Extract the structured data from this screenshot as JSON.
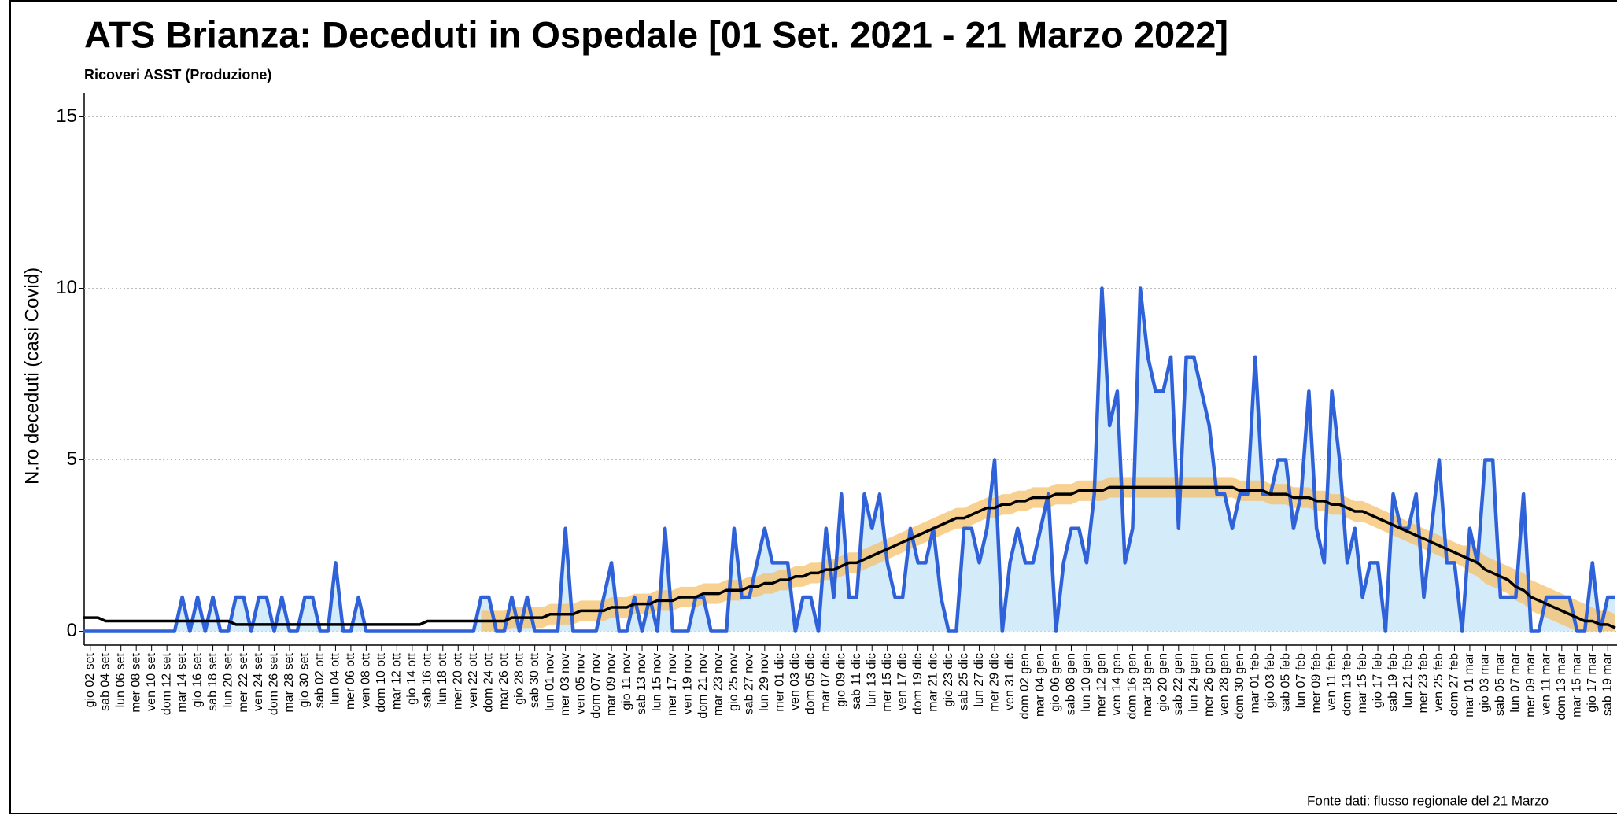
{
  "chart_data": {
    "type": "line",
    "title": "ATS Brianza: Deceduti in Ospedale [01 Set. 2021 - 21 Marzo 2022]",
    "subtitle": "Ricoveri ASST (Produzione)",
    "y_label": "N.ro deceduti (casi Covid)",
    "source": "Fonte dati: flusso regionale del 21 Marzo",
    "ylim": [
      -0.4,
      15.7
    ],
    "yticks": [
      0,
      5,
      10,
      15
    ],
    "grid": true,
    "categories": [
      null,
      "gio 02 set",
      null,
      "sab 04 set",
      null,
      "lun 06 set",
      null,
      "mer 08 set",
      null,
      "ven 10 set",
      null,
      "dom 12 set",
      null,
      "mar 14 set",
      null,
      "gio 16 set",
      null,
      "sab 18 set",
      null,
      "lun 20 set",
      null,
      "mer 22 set",
      null,
      "ven 24 set",
      null,
      "dom 26 set",
      null,
      "mar 28 set",
      null,
      "gio 30 set",
      null,
      "sab 02 ott",
      null,
      "lun 04 ott",
      null,
      "mer 06 ott",
      null,
      "ven 08 ott",
      null,
      "dom 10 ott",
      null,
      "mar 12 ott",
      null,
      "gio 14 ott",
      null,
      "sab 16 ott",
      null,
      "lun 18 ott",
      null,
      "mer 20 ott",
      null,
      "ven 22 ott",
      null,
      "dom 24 ott",
      null,
      "mar 26 ott",
      null,
      "gio 28 ott",
      null,
      "sab 30 ott",
      null,
      "lun 01 nov",
      null,
      "mer 03 nov",
      null,
      "ven 05 nov",
      null,
      "dom 07 nov",
      null,
      "mar 09 nov",
      null,
      "gio 11 nov",
      null,
      "sab 13 nov",
      null,
      "lun 15 nov",
      null,
      "mer 17 nov",
      null,
      "ven 19 nov",
      null,
      "dom 21 nov",
      null,
      "mar 23 nov",
      null,
      "gio 25 nov",
      null,
      "sab 27 nov",
      null,
      "lun 29 nov",
      null,
      "mer 01 dic",
      null,
      "ven 03 dic",
      null,
      "dom 05 dic",
      null,
      "mar 07 dic",
      null,
      "gio 09 dic",
      null,
      "sab 11 dic",
      null,
      "lun 13 dic",
      null,
      "mer 15 dic",
      null,
      "ven 17 dic",
      null,
      "dom 19 dic",
      null,
      "mar 21 dic",
      null,
      "gio 23 dic",
      null,
      "sab 25 dic",
      null,
      "lun 27 dic",
      null,
      "mer 29 dic",
      null,
      "ven 31 dic",
      null,
      "dom 02 gen",
      null,
      "mar 04 gen",
      null,
      "gio 06 gen",
      null,
      "sab 08 gen",
      null,
      "lun 10 gen",
      null,
      "mer 12 gen",
      null,
      "ven 14 gen",
      null,
      "dom 16 gen",
      null,
      "mar 18 gen",
      null,
      "gio 20 gen",
      null,
      "sab 22 gen",
      null,
      "lun 24 gen",
      null,
      "mer 26 gen",
      null,
      "ven 28 gen",
      null,
      "dom 30 gen",
      null,
      "mar 01 feb",
      null,
      "gio 03 feb",
      null,
      "sab 05 feb",
      null,
      "lun 07 feb",
      null,
      "mer 09 feb",
      null,
      "ven 11 feb",
      null,
      "dom 13 feb",
      null,
      "mar 15 feb",
      null,
      "gio 17 feb",
      null,
      "sab 19 feb",
      null,
      "lun 21 feb",
      null,
      "mer 23 feb",
      null,
      "ven 25 feb",
      null,
      "dom 27 feb",
      null,
      "mar 01 mar",
      null,
      "gio 03 mar",
      null,
      "sab 05 mar",
      null,
      "lun 07 mar",
      null,
      "mer 09 mar",
      null,
      "ven 11 mar",
      null,
      "dom 13 mar",
      null,
      "mar 15 mar",
      null,
      "gio 17 mar",
      null,
      "sab 19 mar",
      null
    ],
    "series": [
      {
        "name": "Deceduti",
        "color": "#2f62d8",
        "fill": "#d4ebfa",
        "values": [
          0,
          0,
          0,
          0,
          0,
          0,
          0,
          0,
          0,
          0,
          0,
          0,
          0,
          1,
          0,
          1,
          0,
          1,
          0,
          0,
          1,
          1,
          0,
          1,
          1,
          0,
          1,
          0,
          0,
          1,
          1,
          0,
          0,
          2,
          0,
          0,
          1,
          0,
          0,
          0,
          0,
          0,
          0,
          0,
          0,
          0,
          0,
          0,
          0,
          0,
          0,
          0,
          1,
          1,
          0,
          0,
          1,
          0,
          1,
          0,
          0,
          0,
          0,
          3,
          0,
          0,
          0,
          0,
          1,
          2,
          0,
          0,
          1,
          0,
          1,
          0,
          3,
          0,
          0,
          0,
          1,
          1,
          0,
          0,
          0,
          3,
          1,
          1,
          2,
          3,
          2,
          2,
          2,
          0,
          1,
          1,
          0,
          3,
          1,
          4,
          1,
          1,
          4,
          3,
          4,
          2,
          1,
          1,
          3,
          2,
          2,
          3,
          1,
          0,
          0,
          3,
          3,
          2,
          3,
          5,
          0,
          2,
          3,
          2,
          2,
          3,
          4,
          0,
          2,
          3,
          3,
          2,
          4,
          10,
          6,
          7,
          2,
          3,
          10,
          8,
          7,
          7,
          8,
          3,
          8,
          8,
          7,
          6,
          4,
          4,
          3,
          4,
          4,
          8,
          4,
          4,
          5,
          5,
          3,
          4,
          7,
          3,
          2,
          7,
          5,
          2,
          3,
          1,
          2,
          2,
          0,
          4,
          3,
          3,
          4,
          1,
          3,
          5,
          2,
          2,
          0,
          3,
          2,
          5,
          5,
          1,
          1,
          1,
          4,
          0,
          0,
          1,
          1,
          1,
          1,
          0,
          0,
          2,
          0,
          1,
          1
        ]
      },
      {
        "name": "Trend",
        "color": "#000000",
        "values": [
          0.4,
          0.4,
          0.4,
          0.3,
          0.3,
          0.3,
          0.3,
          0.3,
          0.3,
          0.3,
          0.3,
          0.3,
          0.3,
          0.3,
          0.3,
          0.3,
          0.3,
          0.3,
          0.3,
          0.3,
          0.2,
          0.2,
          0.2,
          0.2,
          0.2,
          0.2,
          0.2,
          0.2,
          0.2,
          0.2,
          0.2,
          0.2,
          0.2,
          0.2,
          0.2,
          0.2,
          0.2,
          0.2,
          0.2,
          0.2,
          0.2,
          0.2,
          0.2,
          0.2,
          0.2,
          0.3,
          0.3,
          0.3,
          0.3,
          0.3,
          0.3,
          0.3,
          0.3,
          0.3,
          0.3,
          0.3,
          0.4,
          0.4,
          0.4,
          0.4,
          0.4,
          0.5,
          0.5,
          0.5,
          0.5,
          0.6,
          0.6,
          0.6,
          0.6,
          0.7,
          0.7,
          0.7,
          0.8,
          0.8,
          0.8,
          0.9,
          0.9,
          0.9,
          1.0,
          1.0,
          1.0,
          1.1,
          1.1,
          1.1,
          1.2,
          1.2,
          1.2,
          1.3,
          1.3,
          1.4,
          1.4,
          1.5,
          1.5,
          1.6,
          1.6,
          1.7,
          1.7,
          1.8,
          1.8,
          1.9,
          2.0,
          2.0,
          2.1,
          2.2,
          2.3,
          2.4,
          2.5,
          2.6,
          2.7,
          2.8,
          2.9,
          3.0,
          3.1,
          3.2,
          3.3,
          3.3,
          3.4,
          3.5,
          3.6,
          3.6,
          3.7,
          3.7,
          3.8,
          3.8,
          3.9,
          3.9,
          3.9,
          4.0,
          4.0,
          4.0,
          4.1,
          4.1,
          4.1,
          4.1,
          4.2,
          4.2,
          4.2,
          4.2,
          4.2,
          4.2,
          4.2,
          4.2,
          4.2,
          4.2,
          4.2,
          4.2,
          4.2,
          4.2,
          4.2,
          4.2,
          4.2,
          4.1,
          4.1,
          4.1,
          4.1,
          4.0,
          4.0,
          4.0,
          3.9,
          3.9,
          3.9,
          3.8,
          3.8,
          3.7,
          3.7,
          3.6,
          3.5,
          3.5,
          3.4,
          3.3,
          3.2,
          3.1,
          3.0,
          2.9,
          2.8,
          2.7,
          2.6,
          2.5,
          2.4,
          2.3,
          2.2,
          2.1,
          2.0,
          1.8,
          1.7,
          1.6,
          1.5,
          1.3,
          1.2,
          1.0,
          0.9,
          0.8,
          0.7,
          0.6,
          0.5,
          0.4,
          0.3,
          0.3,
          0.2,
          0.2,
          0.1
        ]
      }
    ],
    "band": {
      "color": "#f5c06a",
      "lower": [
        null,
        null,
        null,
        null,
        null,
        null,
        null,
        null,
        null,
        null,
        null,
        null,
        null,
        null,
        null,
        null,
        null,
        null,
        null,
        null,
        null,
        null,
        null,
        null,
        null,
        null,
        null,
        null,
        null,
        null,
        null,
        null,
        null,
        null,
        null,
        null,
        null,
        null,
        null,
        null,
        null,
        null,
        null,
        null,
        null,
        null,
        null,
        null,
        null,
        null,
        null,
        null,
        0.0,
        0.0,
        0.0,
        0.0,
        0.1,
        0.1,
        0.1,
        0.1,
        0.1,
        0.2,
        0.2,
        0.2,
        0.2,
        0.3,
        0.3,
        0.3,
        0.3,
        0.4,
        0.4,
        0.4,
        0.5,
        0.5,
        0.5,
        0.6,
        0.6,
        0.6,
        0.7,
        0.7,
        0.7,
        0.8,
        0.8,
        0.8,
        0.9,
        0.9,
        0.9,
        1.0,
        1.0,
        1.1,
        1.1,
        1.2,
        1.2,
        1.3,
        1.3,
        1.4,
        1.4,
        1.5,
        1.5,
        1.6,
        1.7,
        1.7,
        1.8,
        1.9,
        2.0,
        2.1,
        2.2,
        2.3,
        2.4,
        2.5,
        2.6,
        2.7,
        2.8,
        2.9,
        3.0,
        3.0,
        3.1,
        3.2,
        3.3,
        3.3,
        3.4,
        3.4,
        3.5,
        3.5,
        3.6,
        3.6,
        3.6,
        3.7,
        3.7,
        3.7,
        3.8,
        3.8,
        3.8,
        3.8,
        3.9,
        3.9,
        3.9,
        3.9,
        3.9,
        3.9,
        3.9,
        3.9,
        3.9,
        3.9,
        3.9,
        3.9,
        3.9,
        3.9,
        3.9,
        3.9,
        3.9,
        3.8,
        3.8,
        3.8,
        3.8,
        3.7,
        3.7,
        3.7,
        3.6,
        3.6,
        3.6,
        3.5,
        3.5,
        3.4,
        3.4,
        3.3,
        3.2,
        3.2,
        3.1,
        3.0,
        2.9,
        2.8,
        2.7,
        2.6,
        2.5,
        2.4,
        2.3,
        2.2,
        2.1,
        2.0,
        1.9,
        1.7,
        1.6,
        1.4,
        1.3,
        1.2,
        1.1,
        0.9,
        0.8,
        0.6,
        0.5,
        0.4,
        0.3,
        0.2,
        0.1,
        0.0,
        0.0,
        0.0,
        0.0,
        0.0,
        0.0
      ],
      "upper": [
        null,
        null,
        null,
        null,
        null,
        null,
        null,
        null,
        null,
        null,
        null,
        null,
        null,
        null,
        null,
        null,
        null,
        null,
        null,
        null,
        null,
        null,
        null,
        null,
        null,
        null,
        null,
        null,
        null,
        null,
        null,
        null,
        null,
        null,
        null,
        null,
        null,
        null,
        null,
        null,
        null,
        null,
        null,
        null,
        null,
        null,
        null,
        null,
        null,
        null,
        null,
        null,
        0.6,
        0.6,
        0.6,
        0.6,
        0.7,
        0.7,
        0.7,
        0.7,
        0.7,
        0.8,
        0.8,
        0.8,
        0.8,
        0.9,
        0.9,
        0.9,
        0.9,
        1.0,
        1.0,
        1.0,
        1.1,
        1.1,
        1.1,
        1.2,
        1.2,
        1.2,
        1.3,
        1.3,
        1.3,
        1.4,
        1.4,
        1.4,
        1.5,
        1.5,
        1.5,
        1.6,
        1.6,
        1.7,
        1.7,
        1.8,
        1.8,
        1.9,
        1.9,
        2.0,
        2.0,
        2.1,
        2.1,
        2.2,
        2.3,
        2.3,
        2.4,
        2.5,
        2.6,
        2.7,
        2.8,
        2.9,
        3.0,
        3.1,
        3.2,
        3.3,
        3.4,
        3.5,
        3.6,
        3.6,
        3.7,
        3.8,
        3.9,
        3.9,
        4.0,
        4.0,
        4.1,
        4.1,
        4.2,
        4.2,
        4.2,
        4.3,
        4.3,
        4.3,
        4.4,
        4.4,
        4.4,
        4.4,
        4.5,
        4.5,
        4.5,
        4.5,
        4.5,
        4.5,
        4.5,
        4.5,
        4.5,
        4.5,
        4.5,
        4.5,
        4.5,
        4.5,
        4.5,
        4.5,
        4.5,
        4.4,
        4.4,
        4.4,
        4.4,
        4.3,
        4.3,
        4.3,
        4.2,
        4.2,
        4.2,
        4.1,
        4.1,
        4.0,
        4.0,
        3.9,
        3.8,
        3.8,
        3.7,
        3.6,
        3.5,
        3.4,
        3.3,
        3.2,
        3.1,
        3.0,
        2.9,
        2.8,
        2.7,
        2.6,
        2.5,
        2.5,
        2.4,
        2.2,
        2.1,
        2.0,
        1.9,
        1.8,
        1.7,
        1.5,
        1.4,
        1.3,
        1.2,
        1.1,
        1.0,
        0.9,
        0.8,
        0.7,
        0.6,
        0.6,
        0.5
      ]
    }
  }
}
